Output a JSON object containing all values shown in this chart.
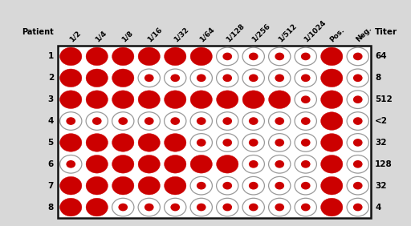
{
  "columns": [
    "1/2",
    "1/4",
    "1/8",
    "1/16",
    "1/32",
    "1/64",
    "1/128",
    "1/256",
    "1/512",
    "1/1024",
    "Pos.",
    "Neg."
  ],
  "patients": [
    "1",
    "2",
    "3",
    "4",
    "5",
    "6",
    "7",
    "8"
  ],
  "titers": [
    "64",
    "8",
    "512",
    "<2",
    "32",
    "128",
    "32",
    "4"
  ],
  "pattern": [
    [
      1,
      1,
      1,
      1,
      1,
      1,
      0,
      0,
      0,
      0,
      1,
      0
    ],
    [
      1,
      1,
      1,
      0,
      0,
      0,
      0,
      0,
      0,
      0,
      1,
      0
    ],
    [
      1,
      1,
      1,
      1,
      1,
      1,
      1,
      1,
      1,
      0,
      1,
      0
    ],
    [
      0,
      0,
      0,
      0,
      0,
      0,
      0,
      0,
      0,
      0,
      1,
      0
    ],
    [
      1,
      1,
      1,
      1,
      1,
      0,
      0,
      0,
      0,
      0,
      1,
      0
    ],
    [
      0,
      1,
      1,
      1,
      1,
      1,
      1,
      0,
      0,
      0,
      1,
      0
    ],
    [
      1,
      1,
      1,
      1,
      1,
      0,
      0,
      0,
      0,
      0,
      1,
      0
    ],
    [
      1,
      1,
      0,
      0,
      0,
      0,
      0,
      0,
      0,
      0,
      1,
      0
    ]
  ],
  "large_color": "#cc0000",
  "small_dot_color": "#cc0000",
  "ring_edge_color": "#999999",
  "bg_color": "#d8d8d8",
  "grid_bg": "#ffffff",
  "box_edge_color": "#111111",
  "fig_width": 5.12,
  "fig_height": 2.82,
  "dpi": 100
}
